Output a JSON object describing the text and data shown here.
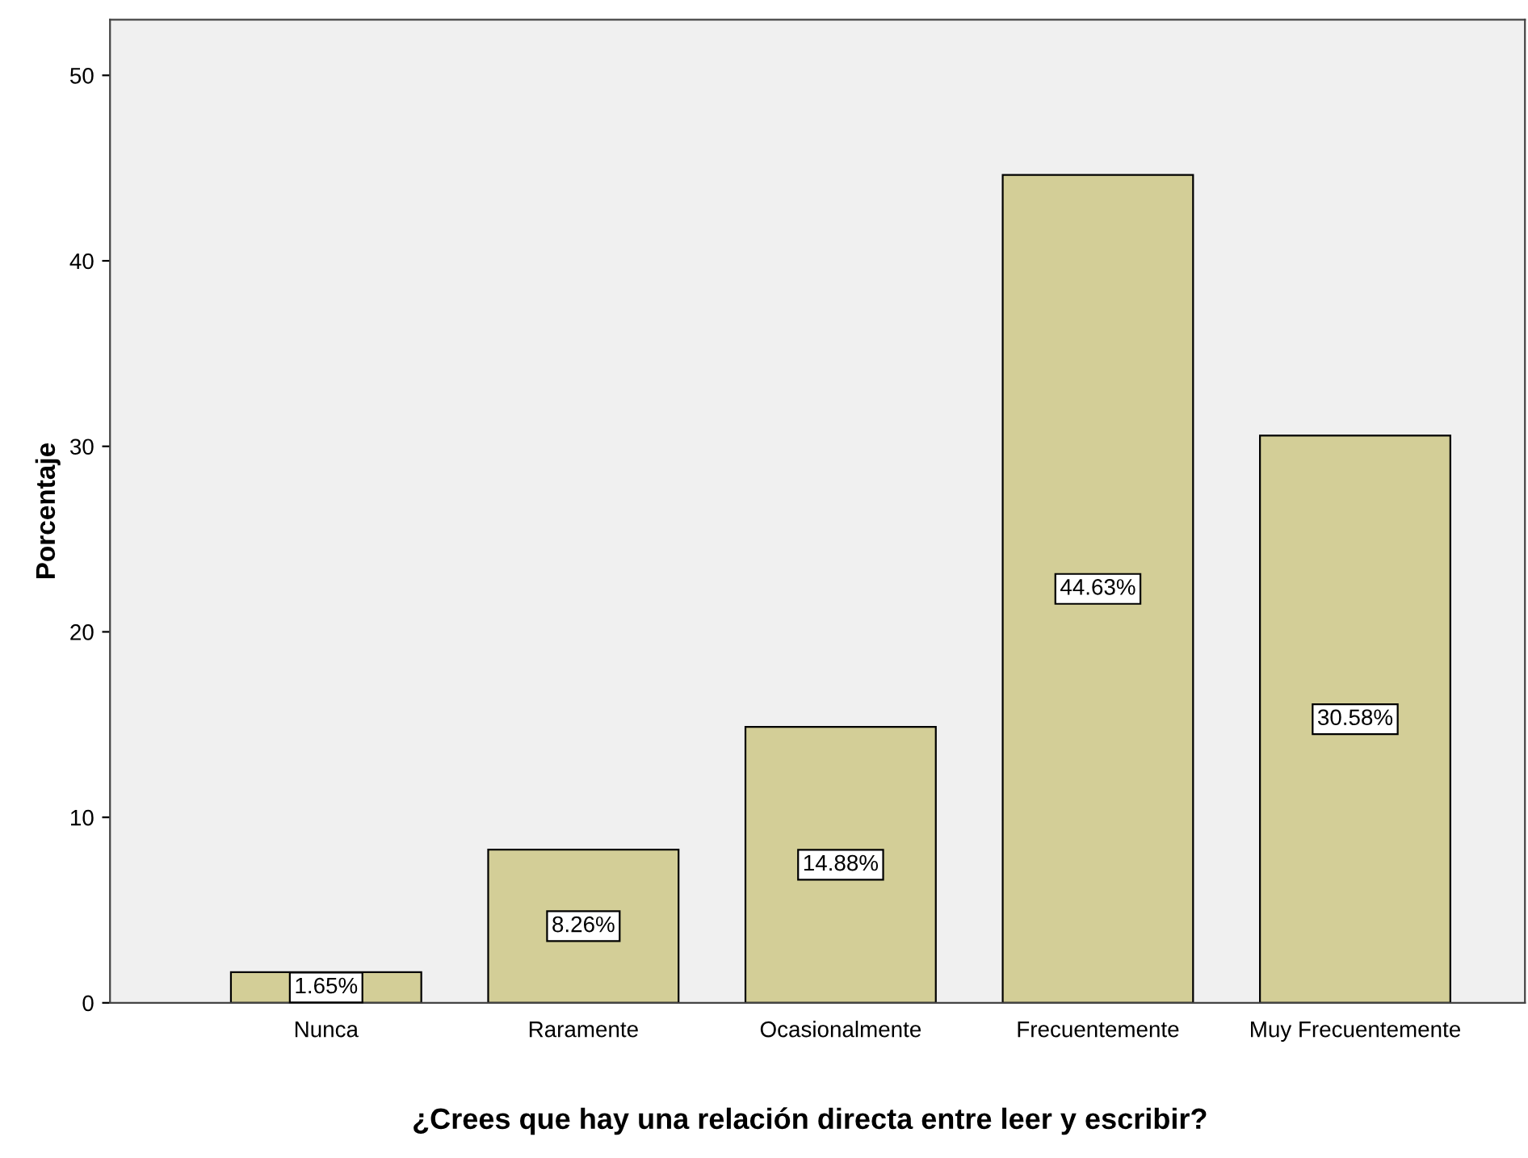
{
  "chart_data": {
    "type": "bar",
    "xlabel": "¿Crees que hay una relación directa entre leer y escribir?",
    "ylabel": "Porcentaje",
    "categories": [
      "Nunca",
      "Raramente",
      "Ocasionalmente",
      "Frecuentemente",
      "Muy Frecuentemente"
    ],
    "values": [
      1.65,
      8.26,
      14.88,
      44.63,
      30.58
    ],
    "value_labels": [
      "1.65%",
      "8.26%",
      "14.88%",
      "44.63%",
      "30.58%"
    ],
    "color": "#d3ce97",
    "ylim": [
      0,
      53
    ],
    "yticks": [
      0,
      10,
      20,
      30,
      40,
      50
    ],
    "grid": false,
    "legend": false
  }
}
